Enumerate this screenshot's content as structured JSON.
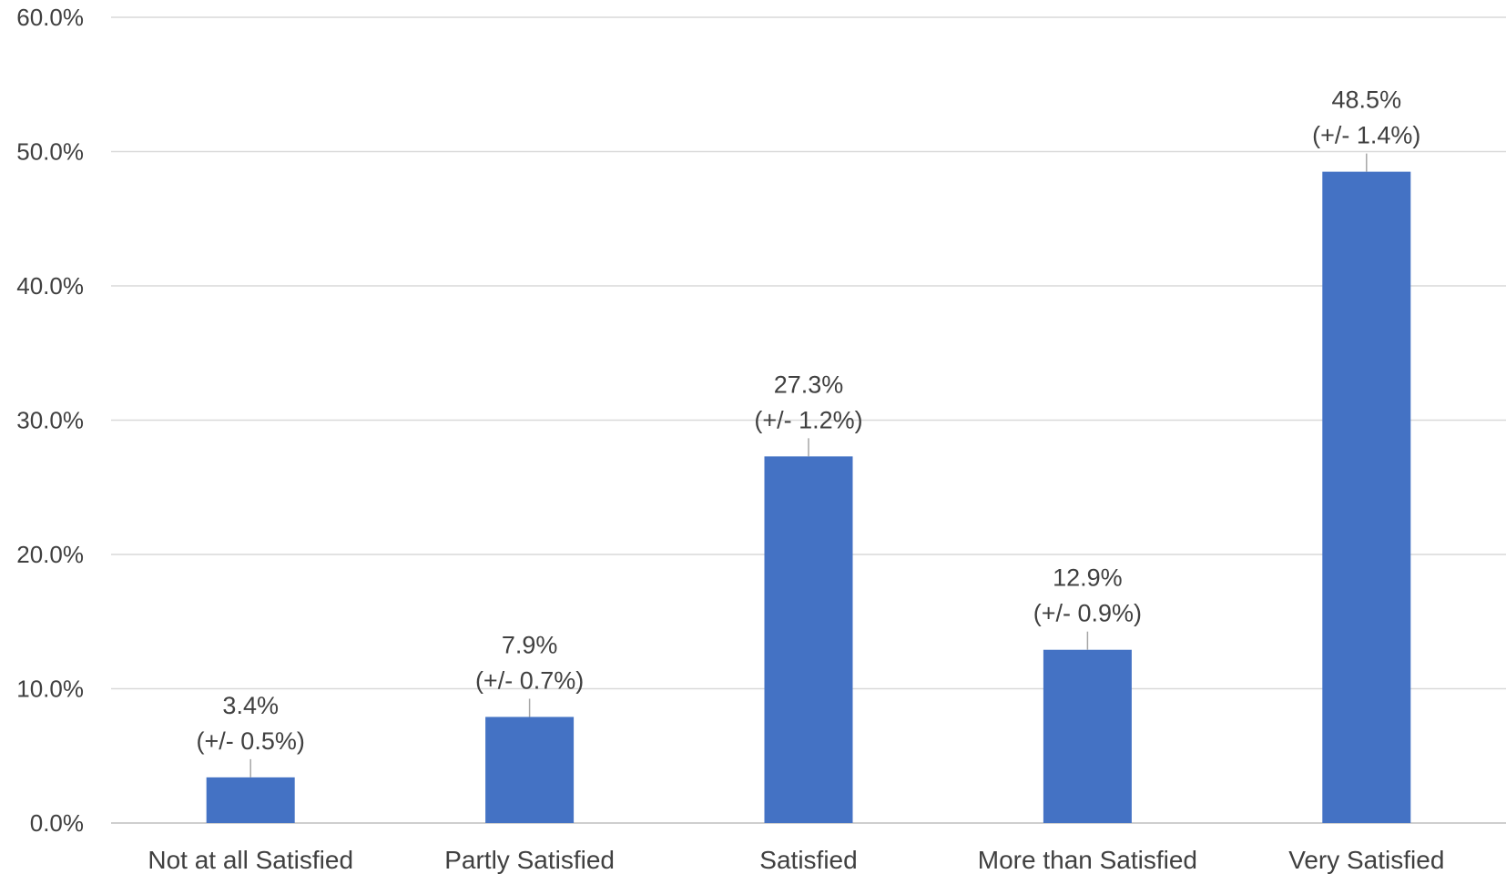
{
  "chart_data": {
    "type": "bar",
    "categories": [
      "Not at all Satisfied",
      "Partly Satisfied",
      "Satisfied",
      "More than Satisfied",
      "Very Satisfied"
    ],
    "values": [
      3.4,
      7.9,
      27.3,
      12.9,
      48.5
    ],
    "value_labels": [
      "3.4%",
      "7.9%",
      "27.3%",
      "12.9%",
      "48.5%"
    ],
    "error_labels": [
      "(+/- 0.5%)",
      "(+/- 0.7%)",
      "(+/- 1.2%)",
      "(+/- 0.9%)",
      "(+/- 1.4%)"
    ],
    "y_ticks": [
      "0.0%",
      "10.0%",
      "20.0%",
      "30.0%",
      "40.0%",
      "50.0%",
      "60.0%"
    ],
    "ylim": [
      0,
      60
    ],
    "grid": true,
    "legend": "none",
    "title": "",
    "xlabel": "",
    "ylabel": "",
    "bar_color": "#4472c4"
  }
}
